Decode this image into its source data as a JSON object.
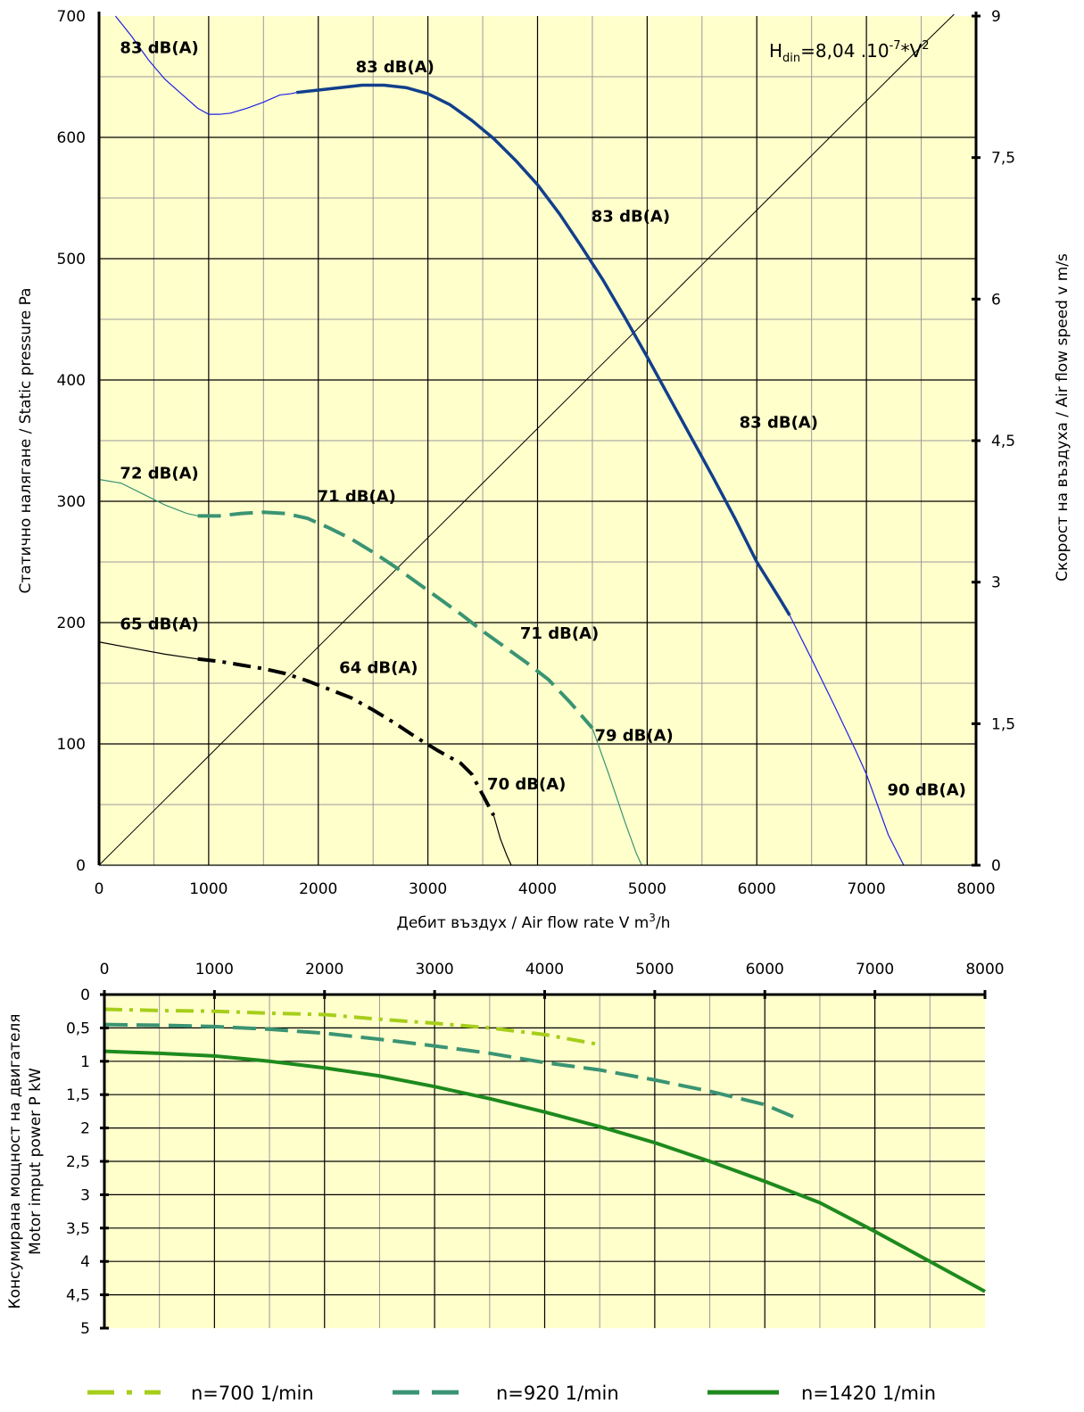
{
  "colors": {
    "plot_bg": "#FFFFCC",
    "grid_major": "#000000",
    "grid_minor": "#9a9a9a",
    "n1420_top": "#123F8C",
    "n1420_top_ext": "#1F1FE6",
    "n920_top": "#3A9473",
    "n700_top": "#000000",
    "system_line": "#000000",
    "power_700": "#A6CE1A",
    "power_920": "#3A9473",
    "power_1420": "#1E8A1E"
  },
  "chart_data": [
    {
      "type": "line",
      "title": "",
      "xlabel": "Дебит въздух / Air flow rate V m3/h",
      "xlabel_parts": {
        "main": "Дебит въздух / Air flow rate V m",
        "sup": "3",
        "tail": "/h"
      },
      "ylabel": "Статично налягане / Static pressure Pa",
      "y2label": "Скорост на въздуха / Air flow speed  v m/s",
      "xlim": [
        0,
        8000
      ],
      "ylim": [
        0,
        700
      ],
      "y2lim": [
        0,
        9
      ],
      "x_ticks": [
        "0",
        "1000",
        "2000",
        "3000",
        "4000",
        "5000",
        "6000",
        "7000",
        "8000"
      ],
      "y_ticks": [
        "0",
        "100",
        "200",
        "300",
        "400",
        "500",
        "600",
        "700"
      ],
      "y2_ticks": [
        "0",
        "1,5",
        "3",
        "4,5",
        "6",
        "7,5",
        "9"
      ],
      "grid": true,
      "formula": {
        "main": "H",
        "sub": "din",
        "mid": "=8,04 .10",
        "sup1": "-7",
        "tail": "*V",
        "sup2": "2"
      },
      "system_curve": {
        "name": "H_din",
        "x": [
          0,
          500,
          1000,
          1500,
          2000,
          2500,
          3000,
          3500,
          4000,
          4500,
          5000,
          5500,
          6000,
          6500,
          7000,
          7500,
          7800
        ],
        "y": [
          0,
          45,
          90,
          135,
          180,
          225,
          270,
          315,
          360,
          405,
          450,
          495,
          540,
          585,
          630,
          675,
          702
        ]
      },
      "series": [
        {
          "name": "n=1420 1/min",
          "style": "solid-thick",
          "thin_x": [
            150,
            300,
            450,
            600,
            750,
            900,
            1000,
            1100,
            1200,
            1350,
            1500,
            1650,
            1750,
            1800
          ],
          "thin_y": [
            700,
            683,
            664,
            648,
            636,
            624,
            619,
            619,
            620,
            624,
            629,
            635,
            636,
            637
          ],
          "x": [
            1800,
            2000,
            2200,
            2400,
            2600,
            2800,
            3000,
            3200,
            3400,
            3600,
            3800,
            4000,
            4200,
            4400,
            4600,
            4800,
            5000,
            5200,
            5400,
            5600,
            5800,
            6000,
            6200,
            6300
          ],
          "y": [
            637,
            639,
            641,
            643,
            643,
            641,
            636,
            627,
            614,
            599,
            581,
            561,
            537,
            510,
            482,
            451,
            419,
            386,
            353,
            320,
            286,
            250,
            221,
            206
          ],
          "ext_x": [
            6300,
            6500,
            6700,
            6900,
            7000,
            7100,
            7200,
            7340
          ],
          "ext_y": [
            206,
            170,
            133,
            95,
            75,
            50,
            25,
            0
          ]
        },
        {
          "name": "n=920 1/min",
          "style": "dashed",
          "thin_x": [
            0,
            200,
            400,
            600,
            800,
            900
          ],
          "thin_y": [
            318,
            315,
            306,
            297,
            290,
            288
          ],
          "x": [
            900,
            1100,
            1300,
            1500,
            1700,
            1900,
            2100,
            2300,
            2500,
            2700,
            2900,
            3100,
            3300,
            3500,
            3700,
            3900,
            4100,
            4300,
            4500
          ],
          "y": [
            288,
            288,
            290,
            291,
            290,
            286,
            278,
            269,
            258,
            246,
            233,
            220,
            207,
            193,
            180,
            167,
            153,
            134,
            113
          ],
          "ext_x": [
            4500,
            4650,
            4800,
            4900,
            4950
          ],
          "ext_y": [
            113,
            75,
            35,
            10,
            0
          ]
        },
        {
          "name": "n=700 1/min",
          "style": "dash-dot",
          "thin_x": [
            0,
            300,
            600,
            900
          ],
          "thin_y": [
            184,
            179,
            174,
            170
          ],
          "x": [
            900,
            1100,
            1300,
            1500,
            1700,
            1900,
            2100,
            2300,
            2500,
            2700,
            2900,
            3100,
            3300,
            3400,
            3500,
            3600
          ],
          "y": [
            170,
            168,
            165,
            162,
            158,
            152,
            145,
            138,
            128,
            117,
            105,
            94,
            84,
            75,
            58,
            41
          ],
          "ext_x": [
            3600,
            3660,
            3720,
            3760
          ],
          "ext_y": [
            41,
            22,
            8,
            0
          ]
        }
      ],
      "annotations": [
        {
          "text": "83 dB(A)",
          "x": 550,
          "y": 674
        },
        {
          "text": "83 dB(A)",
          "x": 2700,
          "y": 658
        },
        {
          "text": "83 dB(A)",
          "x": 4850,
          "y": 535
        },
        {
          "text": "83 dB(A)",
          "x": 6200,
          "y": 365
        },
        {
          "text": "90 dB(A)",
          "x": 7550,
          "y": 62
        },
        {
          "text": "72 dB(A)",
          "x": 550,
          "y": 323
        },
        {
          "text": "71 dB(A)",
          "x": 2350,
          "y": 304
        },
        {
          "text": "71 dB(A)",
          "x": 4200,
          "y": 191
        },
        {
          "text": "79 dB(A)",
          "x": 4880,
          "y": 107
        },
        {
          "text": "65 dB(A)",
          "x": 550,
          "y": 199
        },
        {
          "text": "64 dB(A)",
          "x": 2550,
          "y": 163
        },
        {
          "text": "70 dB(A)",
          "x": 3900,
          "y": 67
        }
      ]
    },
    {
      "type": "line",
      "title": "",
      "ylabel_line1": "Консумирана мощност на двигателя",
      "ylabel_line2": "Motor imput power P kW",
      "xlim": [
        0,
        8000
      ],
      "ylim": [
        0,
        5
      ],
      "y_inverted": true,
      "x_ticks": [
        "0",
        "1000",
        "2000",
        "3000",
        "4000",
        "5000",
        "6000",
        "7000",
        "8000"
      ],
      "y_ticks": [
        "0",
        "0,5",
        "1",
        "1,5",
        "2",
        "2,5",
        "3",
        "3,5",
        "4",
        "4,5",
        "5"
      ],
      "grid": true,
      "series": [
        {
          "name": "n=700 1/min",
          "style": "dash-dot",
          "x": [
            0,
            500,
            1000,
            1500,
            2000,
            2500,
            3000,
            3500,
            4000,
            4500
          ],
          "y": [
            0.22,
            0.24,
            0.25,
            0.28,
            0.3,
            0.37,
            0.43,
            0.5,
            0.6,
            0.75
          ]
        },
        {
          "name": "n=920 1/min",
          "style": "dashed",
          "x": [
            0,
            500,
            1000,
            1500,
            2000,
            2500,
            3000,
            3500,
            4000,
            4500,
            5000,
            5500,
            6000,
            6300
          ],
          "y": [
            0.45,
            0.46,
            0.48,
            0.52,
            0.58,
            0.67,
            0.77,
            0.88,
            1.02,
            1.13,
            1.28,
            1.45,
            1.65,
            1.86
          ]
        },
        {
          "name": "n=1420 1/min",
          "style": "solid-thick",
          "x": [
            0,
            500,
            1000,
            1500,
            2000,
            2500,
            3000,
            3500,
            4000,
            4500,
            5000,
            5500,
            6000,
            6500,
            7000,
            7500,
            8000
          ],
          "y": [
            0.85,
            0.88,
            0.92,
            1.0,
            1.1,
            1.22,
            1.38,
            1.56,
            1.76,
            1.98,
            2.22,
            2.5,
            2.8,
            3.12,
            3.55,
            4.0,
            4.45
          ]
        }
      ]
    }
  ],
  "legend": {
    "placement": "bottom",
    "items": [
      {
        "label": "n=700 1/min",
        "style": "dash-dot"
      },
      {
        "label": "n=920 1/min",
        "style": "dashed"
      },
      {
        "label": "n=1420 1/min",
        "style": "solid-thick"
      }
    ]
  }
}
